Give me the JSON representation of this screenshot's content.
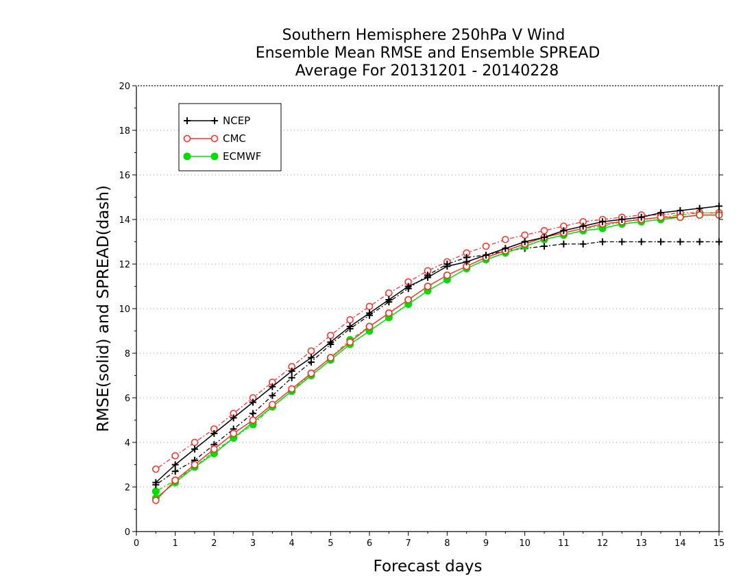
{
  "chart_data": {
    "type": "line",
    "title": [
      "Southern Hemisphere 250hPa V Wind",
      "Ensemble Mean RMSE and Ensemble SPREAD",
      "Average For 20131201 - 20140228"
    ],
    "xlabel": "Forecast days",
    "ylabel": "RMSE(solid) and SPREAD(dash)",
    "xlim": [
      0,
      15
    ],
    "ylim": [
      0,
      20
    ],
    "xticks": [
      0,
      1,
      2,
      3,
      4,
      5,
      6,
      7,
      8,
      9,
      10,
      11,
      12,
      13,
      14,
      15
    ],
    "yticks": [
      0,
      2,
      4,
      6,
      8,
      10,
      12,
      14,
      16,
      18,
      20
    ],
    "grid": true,
    "legend_position": "top-left",
    "x": [
      0.5,
      1,
      1.5,
      2,
      2.5,
      3,
      3.5,
      4,
      4.5,
      5,
      5.5,
      6,
      6.5,
      7,
      7.5,
      8,
      8.5,
      9,
      9.5,
      10,
      10.5,
      11,
      11.5,
      12,
      12.5,
      13,
      13.5,
      14,
      14.5,
      15
    ],
    "series": [
      {
        "name": "NCEP",
        "color": "#000000",
        "marker": "plus",
        "rmse": [
          2.2,
          3.0,
          3.7,
          4.4,
          5.1,
          5.8,
          6.5,
          7.2,
          7.8,
          8.5,
          9.2,
          9.8,
          10.4,
          11.0,
          11.4,
          11.9,
          12.1,
          12.4,
          12.7,
          13.0,
          13.2,
          13.5,
          13.7,
          13.9,
          14.0,
          14.1,
          14.3,
          14.4,
          14.5,
          14.6
        ],
        "spread": [
          2.1,
          2.7,
          3.2,
          3.9,
          4.6,
          5.3,
          6.1,
          6.9,
          7.6,
          8.4,
          9.1,
          9.7,
          10.3,
          10.9,
          11.5,
          12.0,
          12.3,
          12.4,
          12.6,
          12.7,
          12.8,
          12.9,
          12.9,
          13.0,
          13.0,
          13.0,
          13.0,
          13.0,
          13.0,
          13.0
        ]
      },
      {
        "name": "CMC",
        "color": "#ff3030",
        "marker": "circle",
        "rmse": [
          1.4,
          2.3,
          3.0,
          3.7,
          4.4,
          5.0,
          5.7,
          6.4,
          7.1,
          7.8,
          8.5,
          9.2,
          9.8,
          10.4,
          11.0,
          11.5,
          11.9,
          12.3,
          12.6,
          12.9,
          13.2,
          13.4,
          13.6,
          13.8,
          13.9,
          14.0,
          14.1,
          14.1,
          14.2,
          14.2
        ],
        "spread": [
          2.8,
          3.4,
          4.0,
          4.6,
          5.3,
          6.0,
          6.7,
          7.4,
          8.1,
          8.8,
          9.5,
          10.1,
          10.7,
          11.2,
          11.7,
          12.1,
          12.5,
          12.8,
          13.1,
          13.3,
          13.5,
          13.7,
          13.9,
          14.0,
          14.1,
          14.2,
          14.2,
          14.3,
          14.3,
          14.3
        ]
      },
      {
        "name": "ECMWF",
        "color": "#00dd00",
        "marker": "filled-circle",
        "rmse": [
          1.5,
          2.2,
          2.9,
          3.5,
          4.2,
          4.9,
          5.6,
          6.3,
          7.0,
          7.7,
          8.4,
          9.0,
          9.6,
          10.2,
          10.8,
          11.3,
          11.8,
          12.2,
          12.5,
          12.8,
          13.1,
          13.3,
          13.5,
          13.6,
          13.8,
          13.9,
          14.0,
          14.1,
          14.2,
          14.2
        ],
        "spread": [
          1.8,
          2.3,
          2.9,
          3.6,
          4.2,
          4.8,
          5.6,
          6.3,
          7.1,
          7.8,
          8.6,
          9.2,
          9.8,
          10.4,
          11.0,
          11.5,
          11.9,
          12.3,
          12.6,
          12.9,
          13.2,
          13.4,
          13.6,
          13.7,
          13.9,
          14.0,
          14.1,
          14.2,
          14.3,
          14.3
        ]
      }
    ]
  }
}
